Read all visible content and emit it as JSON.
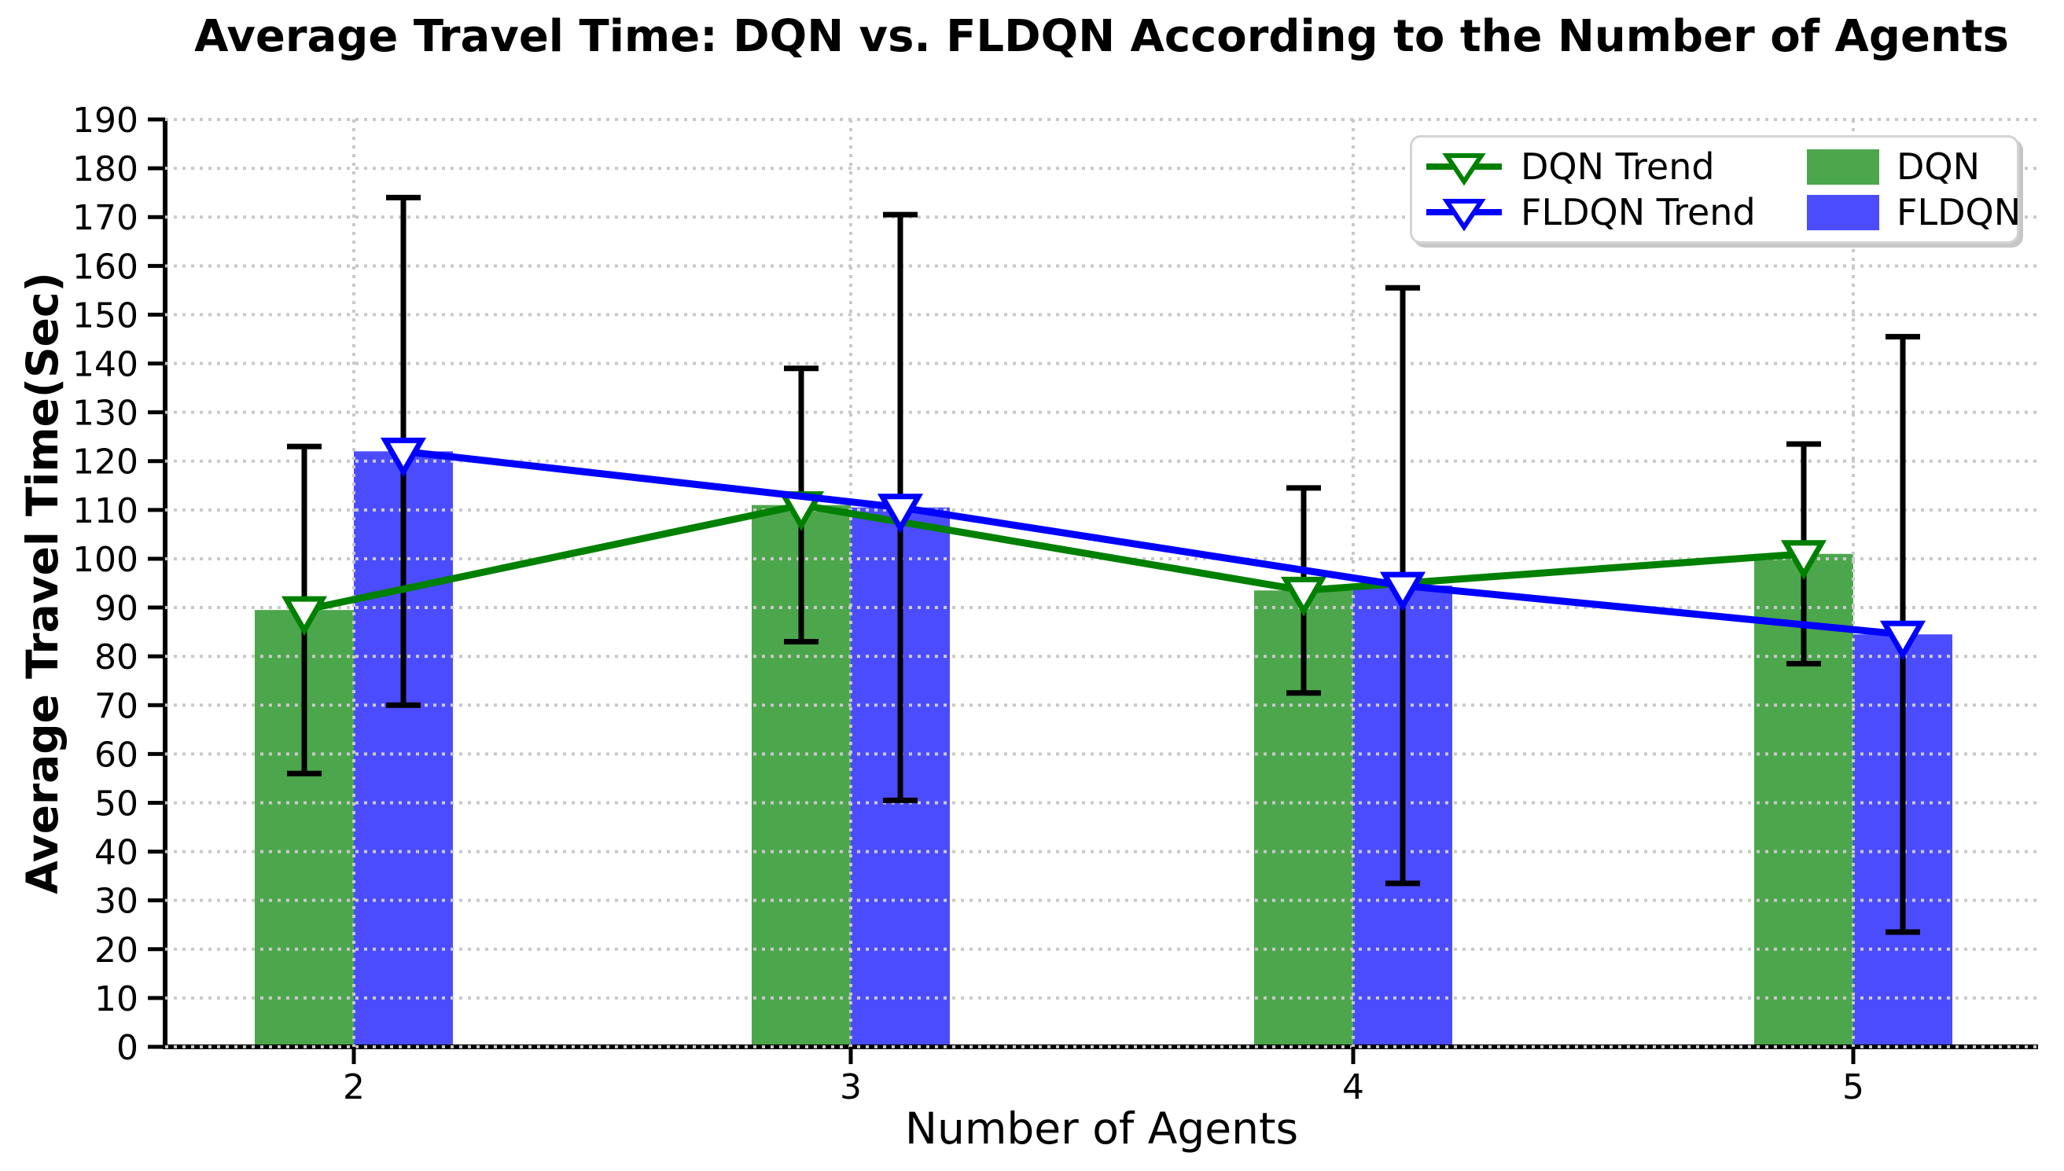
{
  "chart_data": {
    "type": "bar",
    "title": "Average Travel Time: DQN vs. FLDQN According to the Number of Agents",
    "xlabel": "Number of Agents",
    "ylabel": "Average Travel Time(Sec)",
    "categories": [
      "2",
      "3",
      "4",
      "5"
    ],
    "ylim": [
      0,
      190
    ],
    "yticks": [
      0,
      10,
      20,
      30,
      40,
      50,
      60,
      70,
      80,
      90,
      100,
      110,
      120,
      130,
      140,
      150,
      160,
      170,
      180,
      190
    ],
    "grid": {
      "style": "dotted",
      "color": "#c9c9c9",
      "horizontal_at_yticks": true,
      "vertical_at_categories": true
    },
    "legend_position": "upper right",
    "error_bar_color": "#000000",
    "bar_series": [
      {
        "name": "DQN",
        "color": "#4ca64c",
        "values": [
          89.5,
          111,
          93.5,
          101
        ],
        "std": [
          33.5,
          28,
          21,
          22.5
        ]
      },
      {
        "name": "FLDQN",
        "color": "#4c4cff",
        "values": [
          122,
          110.5,
          94.5,
          84.5
        ],
        "std": [
          52,
          60,
          61,
          61
        ]
      }
    ],
    "line_series": [
      {
        "name": "DQN Trend",
        "color": "#008000",
        "marker": "triangle-down-hollow",
        "values": [
          89.5,
          111,
          93.5,
          101
        ]
      },
      {
        "name": "FLDQN Trend",
        "color": "#0000ff",
        "marker": "triangle-down-hollow",
        "values": [
          122,
          110.5,
          94.5,
          84.5
        ]
      }
    ]
  },
  "legend": {
    "items": [
      {
        "label": "DQN Trend",
        "color": "#008000",
        "sample": "line-marker"
      },
      {
        "label": "FLDQN Trend",
        "color": "#0000ff",
        "sample": "line-marker"
      },
      {
        "label": "DQN",
        "color": "#4ca64c",
        "sample": "patch"
      },
      {
        "label": "FLDQN",
        "color": "#4c4cff",
        "sample": "patch"
      }
    ]
  }
}
